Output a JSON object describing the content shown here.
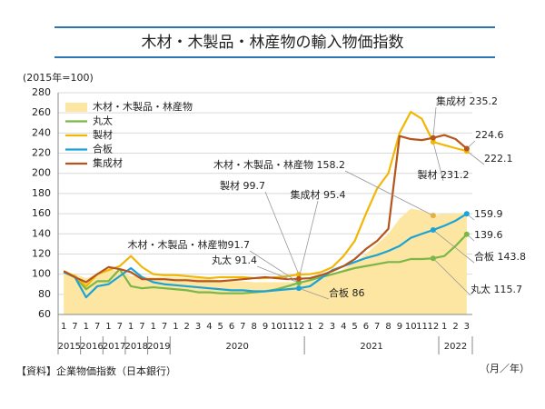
{
  "chart_data": {
    "type": "line",
    "title": "木材・木製品・林産物の輸入物価指数",
    "y_unit": "(2015年=100)",
    "x_unit": "（月／年）",
    "source": "【資料】企業物価指数（日本銀行）",
    "categories": [
      "1",
      "7",
      "1",
      "7",
      "1",
      "7",
      "1",
      "7",
      "1",
      "7",
      "1",
      "2",
      "3",
      "4",
      "5",
      "6",
      "7",
      "8",
      "9",
      "10",
      "11",
      "12",
      "1",
      "2",
      "3",
      "4",
      "5",
      "6",
      "7",
      "8",
      "9",
      "10",
      "11",
      "12",
      "1",
      "2",
      "3"
    ],
    "x_groups": [
      {
        "label": "2015",
        "size": 2
      },
      {
        "label": "2016",
        "size": 2
      },
      {
        "label": "2017",
        "size": 2
      },
      {
        "label": "2018",
        "size": 2
      },
      {
        "label": "2019",
        "size": 2
      },
      {
        "label": "2020",
        "size": 12
      },
      {
        "label": "2021",
        "size": 12
      },
      {
        "label": "2022",
        "size": 3
      }
    ],
    "ylim": [
      60,
      280
    ],
    "yticks": [
      60,
      80,
      100,
      120,
      140,
      160,
      180,
      200,
      220,
      240,
      260,
      280
    ],
    "grid": true,
    "legend": "upper left",
    "series": [
      {
        "name": "木材・木製品・林産物",
        "type": "area",
        "color": "#fde6a2",
        "values": [
          102,
          100,
          96,
          100,
          105,
          103,
          98,
          98,
          97,
          97,
          97,
          96,
          96,
          95,
          94,
          93,
          93,
          92,
          92,
          92,
          92,
          91.7,
          93,
          95,
          100,
          105,
          112,
          120,
          130,
          140,
          155,
          165,
          163,
          158.2,
          160,
          160,
          161
        ],
        "value_labels": [
          null,
          null,
          null,
          null,
          null,
          null,
          null,
          null,
          null,
          null,
          null,
          null,
          null,
          null,
          null,
          null,
          null,
          null,
          null,
          null,
          null,
          "木材・木製品・林産物91.7",
          null,
          null,
          null,
          null,
          null,
          null,
          null,
          null,
          null,
          null,
          null,
          "木材・木製品・林産物 158.2",
          null,
          null,
          null
        ]
      },
      {
        "name": "丸太",
        "color": "#7ab648",
        "values": [
          102,
          98,
          85,
          93,
          93,
          105,
          88,
          86,
          87,
          86,
          85,
          84,
          82,
          82,
          81,
          81,
          81,
          82,
          83,
          85,
          88,
          91.4,
          94,
          97,
          100,
          103,
          106,
          108,
          110,
          112,
          112,
          115,
          115,
          115.7,
          118,
          128,
          139.6
        ],
        "value_labels": [
          null,
          null,
          null,
          null,
          null,
          null,
          null,
          null,
          null,
          null,
          null,
          null,
          null,
          null,
          null,
          null,
          null,
          null,
          null,
          null,
          null,
          "丸太 91.4",
          null,
          null,
          null,
          null,
          null,
          null,
          null,
          null,
          null,
          null,
          null,
          "丸太 115.7",
          null,
          null,
          "139.6"
        ]
      },
      {
        "name": "製材",
        "color": "#f2b705",
        "values": [
          103,
          98,
          88,
          100,
          104,
          108,
          118,
          107,
          100,
          99,
          99,
          98,
          97,
          96,
          97,
          97,
          97,
          96,
          96,
          97,
          98,
          99.7,
          100,
          102,
          107,
          118,
          133,
          160,
          185,
          200,
          240,
          261,
          254,
          231.2,
          228,
          225,
          222.1
        ],
        "value_labels": [
          null,
          null,
          null,
          null,
          null,
          null,
          null,
          null,
          null,
          null,
          null,
          null,
          null,
          null,
          null,
          null,
          null,
          null,
          null,
          null,
          null,
          "製材 99.7",
          null,
          null,
          null,
          null,
          null,
          null,
          null,
          null,
          null,
          null,
          null,
          "製材 231.2",
          null,
          null,
          "222.1"
        ]
      },
      {
        "name": "合板",
        "color": "#1aa3d6",
        "values": [
          102,
          97,
          77,
          88,
          90,
          98,
          106,
          97,
          92,
          90,
          89,
          88,
          87,
          86,
          85,
          84,
          84,
          83,
          83,
          84,
          85,
          86,
          88,
          96,
          104,
          108,
          112,
          116,
          119,
          123,
          128,
          136,
          140,
          143.8,
          148,
          153,
          159.9
        ],
        "value_labels": [
          null,
          null,
          null,
          null,
          null,
          null,
          null,
          null,
          null,
          null,
          null,
          null,
          null,
          null,
          null,
          null,
          null,
          null,
          null,
          null,
          null,
          "合板 86",
          null,
          null,
          null,
          null,
          null,
          null,
          null,
          null,
          null,
          null,
          null,
          "合板 143.8",
          null,
          null,
          "159.9"
        ]
      },
      {
        "name": "集成材",
        "color": "#b5541c",
        "values": [
          103,
          97,
          92,
          100,
          107,
          105,
          102,
          95,
          95,
          95,
          94,
          94,
          93,
          93,
          93,
          94,
          95,
          96,
          97,
          96,
          95,
          95.4,
          96,
          99,
          103,
          108,
          115,
          125,
          133,
          145,
          237,
          234,
          233,
          235.2,
          238,
          234,
          224.6
        ],
        "value_labels": [
          null,
          null,
          null,
          null,
          null,
          null,
          null,
          null,
          null,
          null,
          null,
          null,
          null,
          null,
          null,
          null,
          null,
          null,
          null,
          null,
          null,
          "集成材 95.4",
          null,
          null,
          null,
          null,
          null,
          null,
          null,
          null,
          null,
          null,
          null,
          "集成材 235.2",
          null,
          null,
          "224.6"
        ]
      }
    ]
  }
}
